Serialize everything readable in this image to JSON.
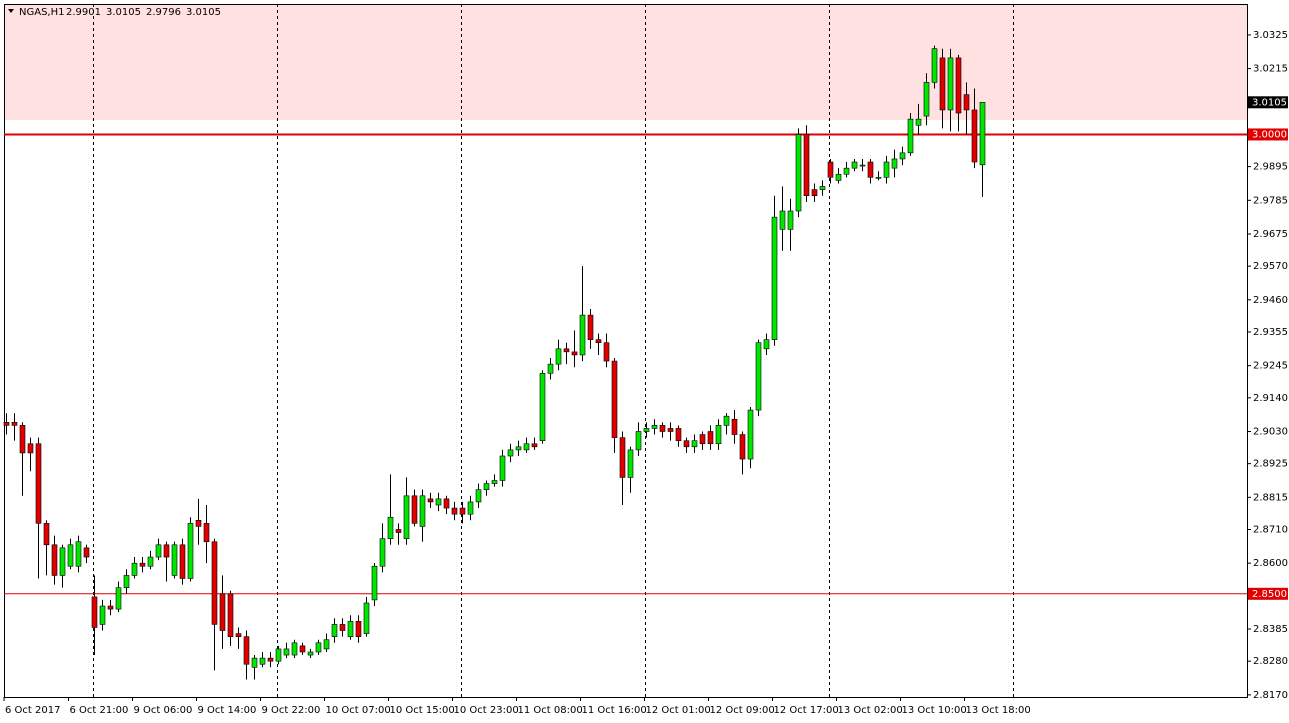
{
  "chart_data": {
    "type": "candlestick",
    "title": "NGAS,H1",
    "header_ohlc": [
      "2.9901",
      "3.0105",
      "2.9796",
      "3.0105"
    ],
    "up_color": "#00e600",
    "down_color": "#e00000",
    "ylim": [
      2.8163,
      3.0426
    ],
    "yticks": [
      3.0325,
      3.0215,
      2.9895,
      2.9785,
      2.9675,
      {
        "value": 2.957,
        "label": "2.9570"
      },
      {
        "value": 2.946,
        "label": "2.9460"
      },
      2.9355,
      2.9245,
      {
        "value": 2.914,
        "label": "2.9140"
      },
      {
        "value": 2.903,
        "label": "2.9030"
      },
      2.8925,
      2.8815,
      {
        "value": 2.871,
        "label": "2.8710"
      },
      {
        "value": 2.86,
        "label": "2.8600"
      },
      2.8385,
      {
        "value": 2.828,
        "label": "2.8280"
      },
      {
        "value": 2.817,
        "label": "2.8170"
      }
    ],
    "zone": {
      "from": 3.0047,
      "to": 3.0426,
      "color": "#ffe1e1"
    },
    "levels": [
      {
        "value": 3.0,
        "label": "3.0000",
        "color": "#e00000",
        "line_width": 2
      },
      {
        "value": 2.85,
        "label": "2.8500",
        "color": "#e00000",
        "line_width": 1
      }
    ],
    "current_price": {
      "value": 3.0105,
      "label": "3.0105"
    },
    "categories": [
      "6 Oct 2017",
      null,
      null,
      null,
      null,
      null,
      null,
      null,
      "6 Oct 21:00",
      null,
      null,
      null,
      null,
      null,
      null,
      null,
      "9 Oct 06:00",
      null,
      null,
      null,
      null,
      null,
      null,
      null,
      "9 Oct 14:00",
      null,
      null,
      null,
      null,
      null,
      null,
      null,
      "9 Oct 22:00",
      null,
      null,
      null,
      null,
      null,
      null,
      null,
      "10 Oct 07:00",
      null,
      null,
      null,
      null,
      null,
      null,
      null,
      "10 Oct 15:00",
      null,
      null,
      null,
      null,
      null,
      null,
      null,
      "10 Oct 23:00",
      null,
      null,
      null,
      null,
      null,
      null,
      null,
      "11 Oct 08:00",
      null,
      null,
      null,
      null,
      null,
      null,
      null,
      "11 Oct 16:00",
      null,
      null,
      null,
      null,
      null,
      null,
      null,
      "12 Oct 01:00",
      null,
      null,
      null,
      null,
      null,
      null,
      null,
      "12 Oct 09:00",
      null,
      null,
      null,
      null,
      null,
      null,
      null,
      "12 Oct 17:00",
      null,
      null,
      null,
      null,
      null,
      null,
      null,
      "13 Oct 02:00",
      null,
      null,
      null,
      null,
      null,
      null,
      null,
      "13 Oct 10:00",
      null,
      null,
      null,
      null,
      null,
      null,
      null,
      "13 Oct 18:00",
      null,
      null
    ],
    "open": [
      2.906,
      2.906,
      2.905,
      2.899,
      2.899,
      2.873,
      2.866,
      2.856,
      2.859,
      2.859,
      2.865,
      2.849,
      2.84,
      2.846,
      2.845,
      2.852,
      2.856,
      2.86,
      2.859,
      2.862,
      2.866,
      2.856,
      2.866,
      2.855,
      2.874,
      2.873,
      2.867,
      2.85,
      2.85,
      2.837,
      2.836,
      2.826,
      2.827,
      2.829,
      2.828,
      2.83,
      2.83,
      2.833,
      2.83,
      2.831,
      2.832,
      2.836,
      2.84,
      2.836,
      2.841,
      2.837,
      2.848,
      2.859,
      2.868,
      2.871,
      2.868,
      2.882,
      2.872,
      2.881,
      2.879,
      2.881,
      2.878,
      2.878,
      2.876,
      2.88,
      2.884,
      2.886,
      2.887,
      2.895,
      2.897,
      2.897,
      2.899,
      2.9,
      2.922,
      2.925,
      2.93,
      2.929,
      2.928,
      2.941,
      2.933,
      2.932,
      2.926,
      2.901,
      2.888,
      2.897,
      2.903,
      2.904,
      2.905,
      2.904,
      2.904,
      2.9,
      2.898,
      2.902,
      2.903,
      2.899,
      2.905,
      2.907,
      2.902,
      2.894,
      2.91,
      2.93,
      2.933,
      2.969,
      2.969,
      2.975,
      3.0,
      2.982,
      2.982,
      2.991,
      2.985,
      2.987,
      2.989,
      2.99,
      2.991,
      2.986,
      2.986,
      2.989,
      2.992,
      2.994,
      3.003,
      3.006,
      3.017,
      3.025,
      3.008,
      3.025,
      3.013,
      3.008,
      2.9901
    ],
    "high": [
      2.909,
      2.909,
      2.906,
      2.901,
      2.901,
      2.874,
      2.869,
      2.866,
      2.868,
      2.869,
      2.866,
      2.856,
      2.848,
      2.848,
      2.854,
      2.858,
      2.862,
      2.862,
      2.864,
      2.868,
      2.867,
      2.867,
      2.868,
      2.875,
      2.881,
      2.879,
      2.868,
      2.856,
      2.851,
      2.839,
      2.838,
      2.83,
      2.831,
      2.831,
      2.833,
      2.834,
      2.835,
      2.834,
      2.832,
      2.835,
      2.837,
      2.842,
      2.842,
      2.843,
      2.843,
      2.849,
      2.86,
      2.873,
      2.889,
      2.873,
      2.888,
      2.884,
      2.884,
      2.883,
      2.883,
      2.882,
      2.88,
      2.88,
      2.882,
      2.886,
      2.887,
      2.889,
      2.897,
      2.899,
      2.9,
      2.901,
      2.901,
      2.923,
      2.927,
      2.933,
      2.932,
      2.936,
      2.957,
      2.943,
      2.935,
      2.935,
      2.927,
      2.903,
      2.898,
      2.906,
      2.906,
      2.907,
      2.906,
      2.906,
      2.905,
      2.901,
      2.902,
      2.903,
      2.905,
      2.907,
      2.909,
      2.91,
      2.903,
      2.911,
      2.933,
      2.935,
      2.98,
      2.983,
      2.979,
      3.002,
      3.003,
      2.984,
      2.985,
      2.992,
      2.989,
      2.991,
      2.992,
      2.992,
      2.992,
      2.988,
      2.993,
      2.995,
      2.996,
      3.007,
      3.01,
      3.02,
      3.029,
      3.028,
      3.028,
      3.026,
      3.017,
      3.015,
      3.0105
    ],
    "low": [
      2.902,
      2.9,
      2.882,
      2.89,
      2.855,
      2.856,
      2.853,
      2.852,
      2.858,
      2.857,
      2.86,
      2.83,
      2.838,
      2.843,
      2.844,
      2.85,
      2.855,
      2.857,
      2.858,
      2.861,
      2.854,
      2.855,
      2.853,
      2.854,
      2.866,
      2.86,
      2.825,
      2.832,
      2.833,
      2.832,
      2.822,
      2.822,
      2.826,
      2.826,
      2.827,
      2.829,
      2.829,
      2.83,
      2.829,
      2.83,
      2.831,
      2.834,
      2.836,
      2.835,
      2.834,
      2.836,
      2.846,
      2.857,
      2.866,
      2.866,
      2.866,
      2.872,
      2.867,
      2.878,
      2.877,
      2.876,
      2.874,
      2.873,
      2.874,
      2.878,
      2.882,
      2.885,
      2.885,
      2.893,
      2.895,
      2.896,
      2.897,
      2.899,
      2.92,
      2.923,
      2.925,
      2.924,
      2.926,
      2.93,
      2.928,
      2.924,
      2.896,
      2.879,
      2.883,
      2.895,
      2.901,
      2.902,
      2.901,
      2.9,
      2.898,
      2.896,
      2.896,
      2.897,
      2.897,
      2.897,
      2.902,
      2.899,
      2.889,
      2.891,
      2.908,
      2.928,
      2.931,
      2.962,
      2.962,
      2.973,
      2.978,
      2.978,
      2.98,
      2.984,
      2.984,
      2.986,
      2.988,
      2.988,
      2.984,
      2.985,
      2.984,
      2.986,
      2.99,
      2.993,
      3.0,
      3.003,
      3.015,
      3.002,
      3.001,
      3.001,
      3.0,
      2.989,
      2.9796
    ],
    "close": [
      2.905,
      2.905,
      2.896,
      2.896,
      2.873,
      2.866,
      2.856,
      2.865,
      2.866,
      2.867,
      2.862,
      2.839,
      2.846,
      2.845,
      2.852,
      2.856,
      2.86,
      2.859,
      2.862,
      2.866,
      2.862,
      2.866,
      2.855,
      2.873,
      2.872,
      2.867,
      2.84,
      2.838,
      2.836,
      2.836,
      2.827,
      2.829,
      2.829,
      2.828,
      2.832,
      2.832,
      2.834,
      2.831,
      2.831,
      2.834,
      2.835,
      2.84,
      2.838,
      2.841,
      2.836,
      2.847,
      2.859,
      2.868,
      2.875,
      2.87,
      2.882,
      2.873,
      2.882,
      2.88,
      2.881,
      2.878,
      2.876,
      2.876,
      2.88,
      2.884,
      2.886,
      2.887,
      2.895,
      2.897,
      2.898,
      2.899,
      2.898,
      2.922,
      2.925,
      2.93,
      2.929,
      2.928,
      2.941,
      2.933,
      2.932,
      2.926,
      2.901,
      2.888,
      2.897,
      2.903,
      2.904,
      2.905,
      2.903,
      2.903,
      2.9,
      2.898,
      2.9,
      2.899,
      2.899,
      2.905,
      2.908,
      2.902,
      2.894,
      2.91,
      2.932,
      2.933,
      2.973,
      2.975,
      2.975,
      3.0,
      2.98,
      2.98,
      2.983,
      2.986,
      2.987,
      2.989,
      2.991,
      2.99,
      2.986,
      2.986,
      2.991,
      2.992,
      2.994,
      3.005,
      3.005,
      3.017,
      3.028,
      3.008,
      3.025,
      3.007,
      3.008,
      2.991,
      3.0105
    ]
  }
}
